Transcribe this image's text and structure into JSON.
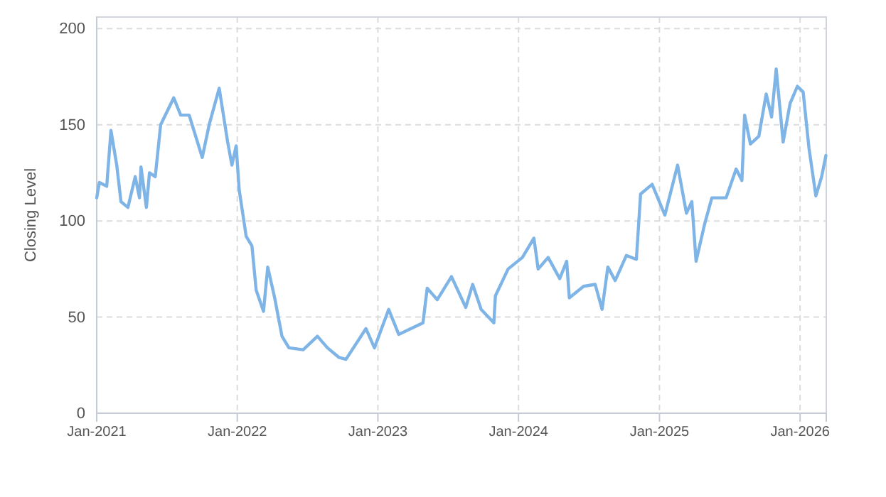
{
  "chart_data": {
    "type": "line",
    "ylabel": "Closing Level",
    "x": [
      "2021-01-01",
      "2021-01-08",
      "2021-01-27",
      "2021-02-07",
      "2021-02-22",
      "2021-03-05",
      "2021-03-23",
      "2021-04-11",
      "2021-04-22",
      "2021-04-26",
      "2021-05-10",
      "2021-05-18",
      "2021-06-02",
      "2021-06-16",
      "2021-07-20",
      "2021-08-07",
      "2021-08-29",
      "2021-10-02",
      "2021-10-20",
      "2021-11-15",
      "2021-12-07",
      "2021-12-18",
      "2021-12-29",
      "2022-01-06",
      "2022-01-24",
      "2022-02-08",
      "2022-02-19",
      "2022-03-10",
      "2022-03-21",
      "2022-04-08",
      "2022-04-27",
      "2022-05-15",
      "2022-06-21",
      "2022-07-28",
      "2022-08-23",
      "2022-09-22",
      "2022-10-10",
      "2022-12-01",
      "2022-12-23",
      "2023-01-29",
      "2023-02-24",
      "2023-04-28",
      "2023-05-09",
      "2023-06-04",
      "2023-07-11",
      "2023-08-17",
      "2023-09-04",
      "2023-09-26",
      "2023-10-29",
      "2023-11-02",
      "2023-12-05",
      "2024-01-11",
      "2024-02-10",
      "2024-02-21",
      "2024-03-18",
      "2024-04-17",
      "2024-05-05",
      "2024-05-12",
      "2024-06-18",
      "2024-07-18",
      "2024-08-05",
      "2024-08-20",
      "2024-09-08",
      "2024-10-07",
      "2024-11-02",
      "2024-11-13",
      "2024-12-13",
      "2025-01-15",
      "2025-02-17",
      "2025-03-12",
      "2025-03-26",
      "2025-04-06",
      "2025-04-29",
      "2025-05-17",
      "2025-06-23",
      "2025-07-19",
      "2025-08-03",
      "2025-08-10",
      "2025-08-25",
      "2025-09-16",
      "2025-10-05",
      "2025-10-19",
      "2025-10-31",
      "2025-11-18",
      "2025-12-06",
      "2025-12-25",
      "2026-01-09",
      "2026-01-24",
      "2026-02-11",
      "2026-02-26",
      "2026-03-09"
    ],
    "series": [
      {
        "color": "#7eb4e6",
        "values": [
          112,
          120,
          118,
          147,
          129,
          110,
          107,
          123,
          112,
          128,
          107,
          125,
          123,
          150,
          164,
          155,
          155,
          133,
          150,
          169,
          141,
          129,
          139,
          116,
          92,
          87,
          64,
          53,
          76,
          60,
          40,
          34,
          33,
          40,
          34,
          29,
          28,
          44,
          34,
          54,
          41,
          47,
          65,
          59,
          71,
          55,
          67,
          54,
          47,
          61,
          75,
          81,
          91,
          75,
          81,
          70,
          79,
          60,
          66,
          67,
          54,
          76,
          69,
          82,
          80,
          114,
          119,
          103,
          129,
          104,
          110,
          79,
          99,
          112,
          112,
          127,
          121,
          155,
          140,
          144,
          166,
          154,
          179,
          141,
          161,
          170,
          167,
          138,
          113,
          123,
          134
        ]
      }
    ],
    "xlim": [
      "2021-01-01",
      "2026-03-10"
    ],
    "xticks": [
      {
        "value": "2021-01-01",
        "label": "Jan-2021"
      },
      {
        "value": "2022-01-01",
        "label": "Jan-2022"
      },
      {
        "value": "2023-01-01",
        "label": "Jan-2023"
      },
      {
        "value": "2024-01-01",
        "label": "Jan-2024"
      },
      {
        "value": "2025-01-01",
        "label": "Jan-2025"
      },
      {
        "value": "2026-01-01",
        "label": "Jan-2026"
      }
    ],
    "ylim": [
      0,
      206
    ],
    "yticks": [
      0,
      50,
      100,
      150,
      200
    ],
    "grid": true,
    "marker": "none",
    "line_style": "solid"
  }
}
